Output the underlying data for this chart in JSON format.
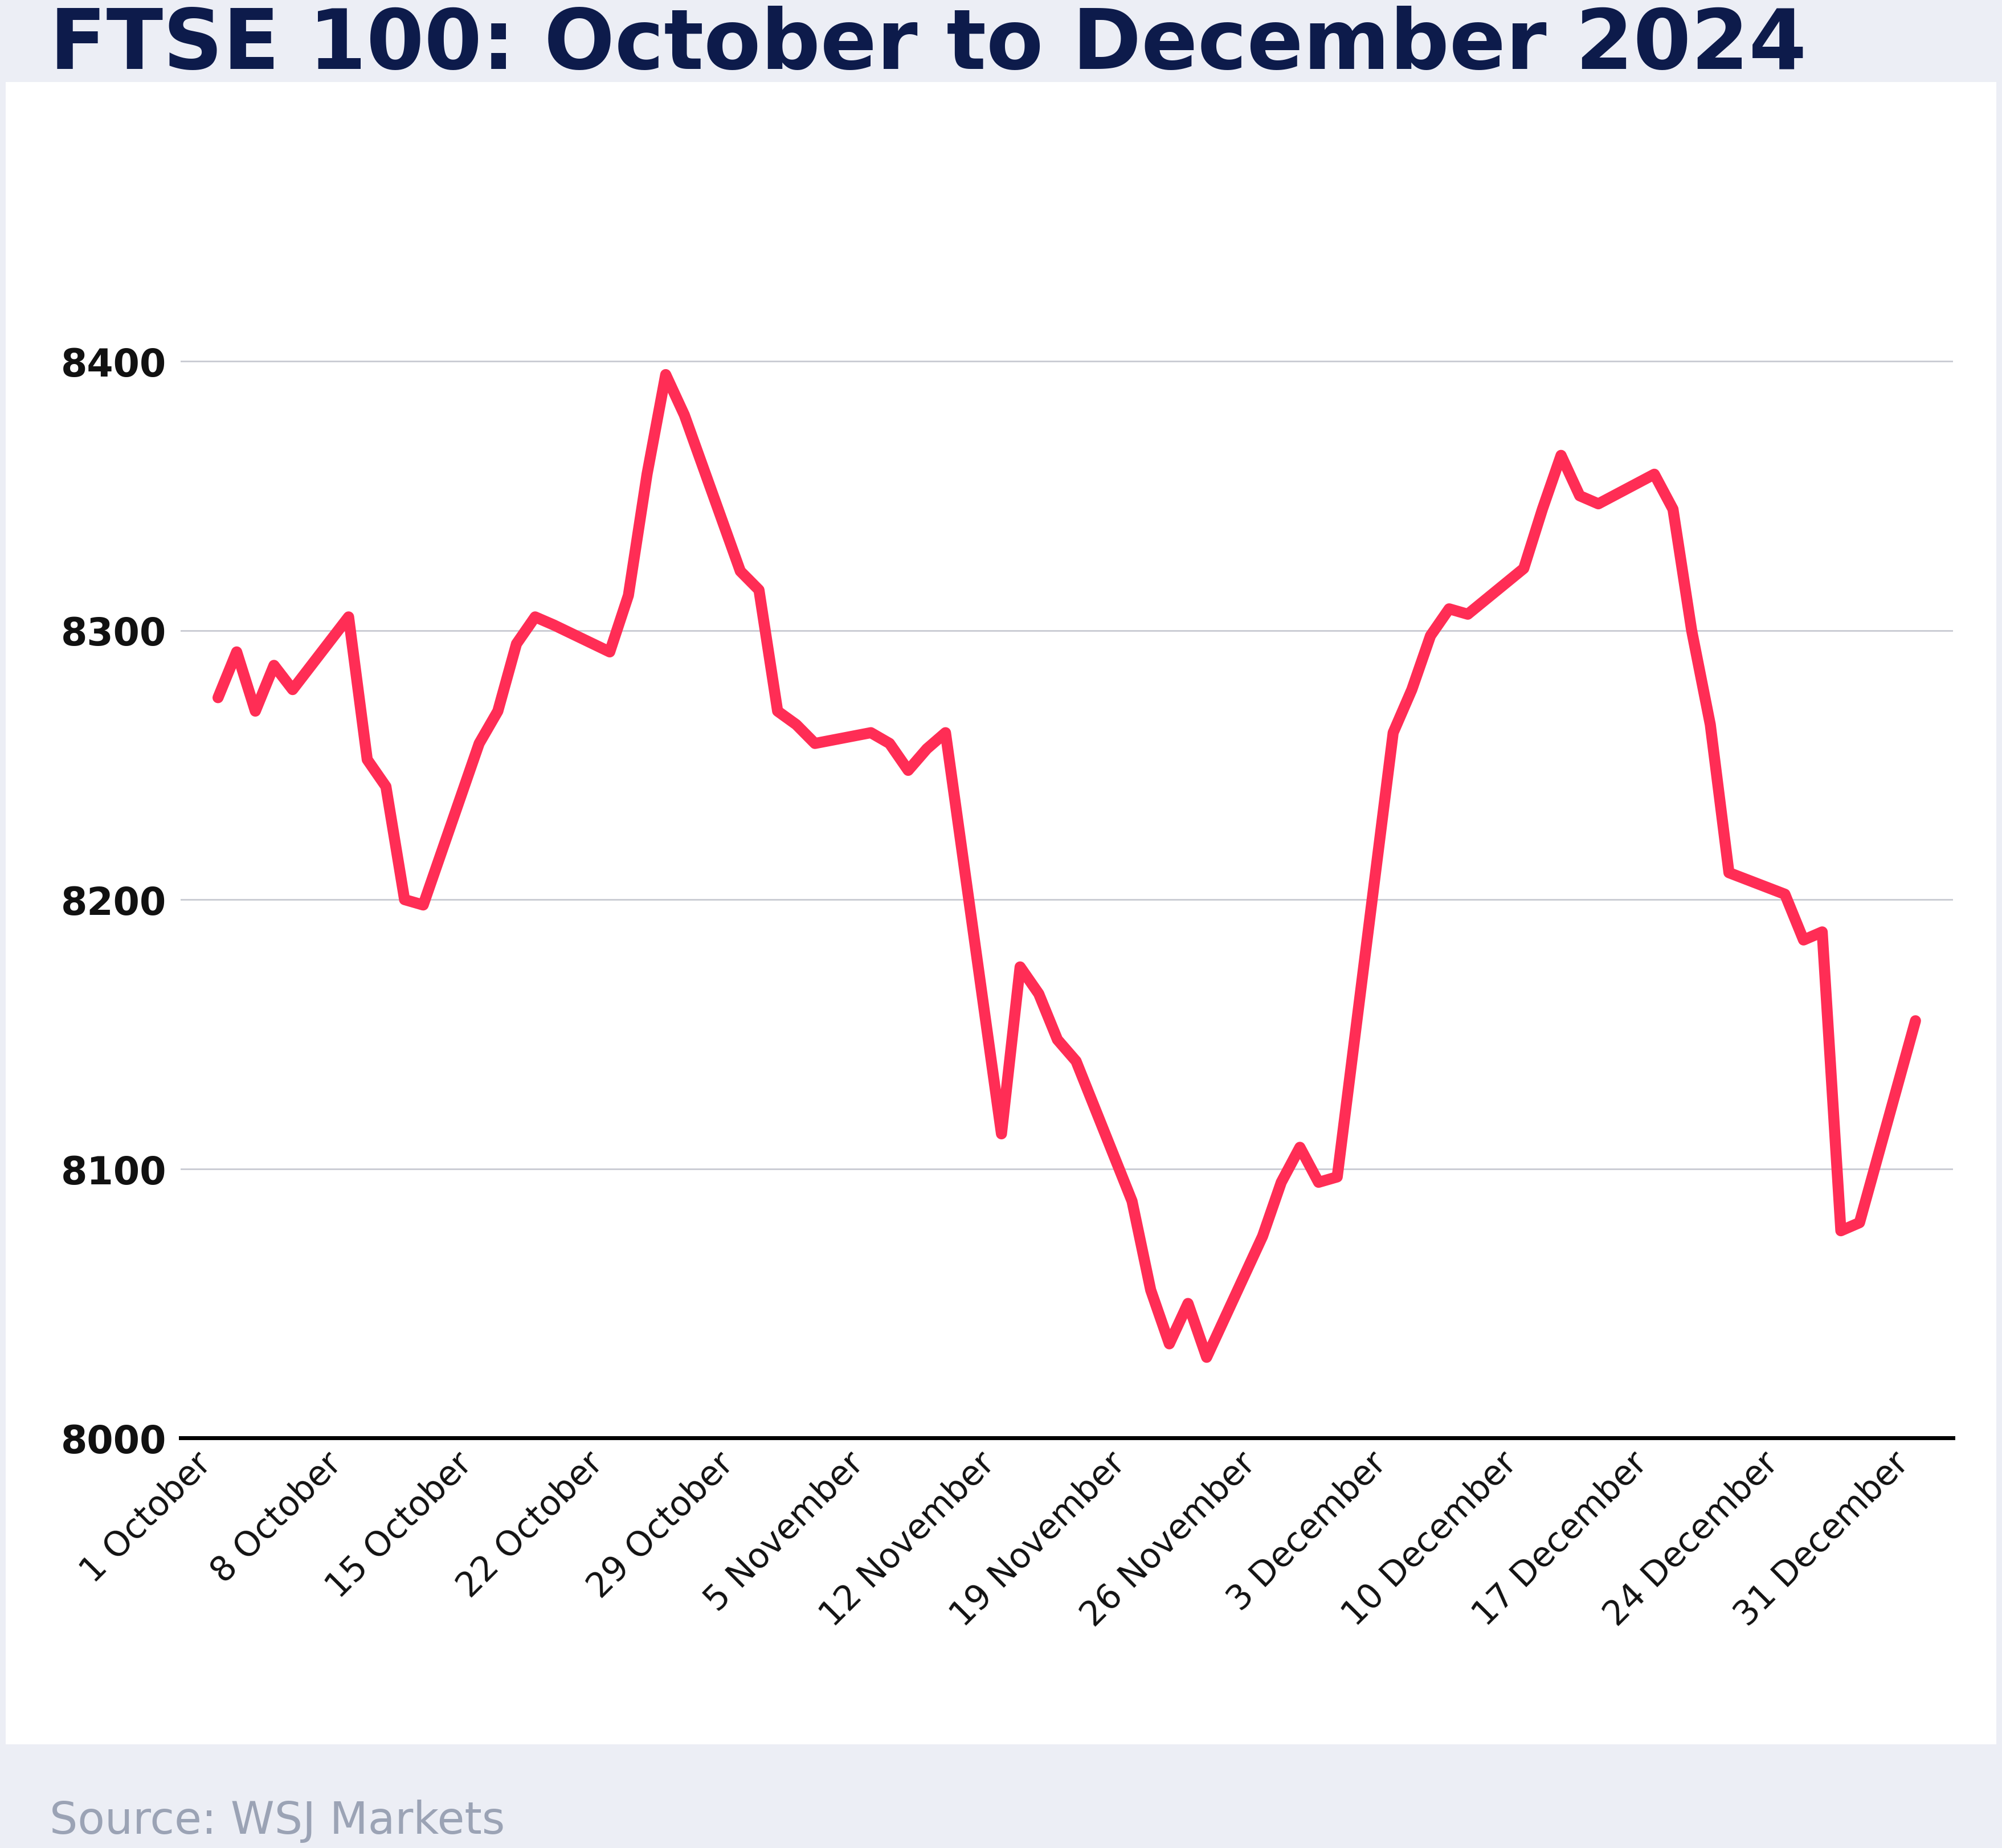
{
  "title": "FTSE 100: October to December 2024",
  "source": "Source: WSJ Markets",
  "line_color": "#FF2D55",
  "line_width": 14,
  "background_color": "#ECEEF5",
  "chart_bg_color": "#FFFFFF",
  "title_color": "#0D1B4B",
  "source_color": "#9BA3B5",
  "ylim": [
    8000,
    8450
  ],
  "yticks": [
    8000,
    8100,
    8200,
    8300,
    8400
  ],
  "xtick_labels": [
    "1 October",
    "8 October",
    "15 October",
    "22 October",
    "29 October",
    "5 November",
    "12 November",
    "19 November",
    "26 November",
    "3 December",
    "10 December",
    "17 December",
    "24 December",
    "31 December"
  ],
  "x_values": [
    0,
    1,
    2,
    3,
    4,
    7,
    8,
    9,
    10,
    11,
    14,
    15,
    16,
    17,
    18,
    21,
    22,
    23,
    24,
    25,
    28,
    29,
    30,
    31,
    32,
    35,
    36,
    37,
    38,
    39,
    42,
    43,
    44,
    45,
    46,
    49,
    50,
    51,
    52,
    53,
    56,
    57,
    58,
    59,
    60,
    63,
    64,
    65,
    66,
    67,
    70,
    71,
    72,
    73,
    74,
    77,
    78,
    79,
    80,
    81,
    84,
    85,
    86,
    87,
    88,
    91
  ],
  "y_values": [
    8275,
    8292,
    8270,
    8287,
    8278,
    8305,
    8252,
    8242,
    8200,
    8198,
    8258,
    8270,
    8295,
    8305,
    8302,
    8292,
    8313,
    8358,
    8395,
    8380,
    8322,
    8315,
    8270,
    8265,
    8258,
    8262,
    8258,
    8248,
    8256,
    8262,
    8113,
    8175,
    8165,
    8148,
    8140,
    8088,
    8055,
    8035,
    8050,
    8030,
    8075,
    8095,
    8108,
    8095,
    8097,
    8262,
    8278,
    8298,
    8308,
    8306,
    8323,
    8345,
    8365,
    8350,
    8347,
    8358,
    8345,
    8300,
    8265,
    8210,
    8202,
    8185,
    8188,
    8077,
    8080,
    8155
  ]
}
